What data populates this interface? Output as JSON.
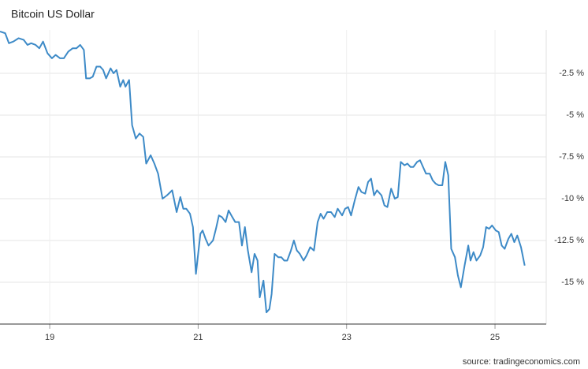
{
  "chart_data": {
    "type": "line",
    "title": "Bitcoin US Dollar",
    "source": "source: tradingeconomics.com",
    "xlim": [
      18.33,
      25.69
    ],
    "xticks": [
      19,
      21,
      23,
      25
    ],
    "ylim": [
      -17.5,
      0
    ],
    "yticks": [
      {
        "value": -2.5,
        "label": "-2.5 %"
      },
      {
        "value": -5,
        "label": "-5 %"
      },
      {
        "value": -7.5,
        "label": "-7.5 %"
      },
      {
        "value": -10,
        "label": "-10 %"
      },
      {
        "value": -12.5,
        "label": "-12.5 %"
      },
      {
        "value": -15,
        "label": "-15 %"
      }
    ],
    "grid": true,
    "y_axis_side": "right",
    "series": [
      {
        "name": "Bitcoin US Dollar",
        "color": "#3d8ac7",
        "x": [
          18.33,
          18.4,
          18.45,
          18.51,
          18.58,
          18.65,
          18.7,
          18.75,
          18.81,
          18.86,
          18.91,
          18.97,
          19.03,
          19.08,
          19.14,
          19.19,
          19.25,
          19.31,
          19.36,
          19.41,
          19.46,
          19.49,
          19.54,
          19.58,
          19.63,
          19.68,
          19.72,
          19.76,
          19.82,
          19.86,
          19.9,
          19.95,
          19.99,
          20.02,
          20.07,
          20.11,
          20.16,
          20.21,
          20.26,
          20.3,
          20.36,
          20.41,
          20.46,
          20.52,
          20.58,
          20.65,
          20.71,
          20.76,
          20.8,
          20.84,
          20.89,
          20.93,
          20.97,
          21.03,
          21.06,
          21.1,
          21.14,
          21.2,
          21.24,
          21.28,
          21.32,
          21.37,
          21.41,
          21.46,
          21.5,
          21.55,
          21.59,
          21.63,
          21.67,
          21.72,
          21.76,
          21.8,
          21.83,
          21.88,
          21.92,
          21.96,
          21.99,
          22.03,
          22.08,
          22.12,
          22.16,
          22.2,
          22.25,
          22.29,
          22.33,
          22.37,
          22.42,
          22.46,
          22.51,
          22.56,
          22.61,
          22.65,
          22.69,
          22.74,
          22.79,
          22.84,
          22.88,
          22.94,
          22.98,
          23.02,
          23.06,
          23.11,
          23.16,
          23.2,
          23.25,
          23.29,
          23.33,
          23.37,
          23.41,
          23.47,
          23.51,
          23.55,
          23.6,
          23.65,
          23.69,
          23.73,
          23.78,
          23.82,
          23.86,
          23.9,
          23.95,
          23.99,
          24.03,
          24.07,
          24.12,
          24.16,
          24.2,
          24.24,
          24.29,
          24.33,
          24.37,
          24.41,
          24.46,
          24.5,
          24.54,
          24.59,
          24.64,
          24.67,
          24.71,
          24.75,
          24.8,
          24.84,
          24.88,
          24.92,
          24.96,
          25.01,
          25.05,
          25.09,
          25.13,
          25.18,
          25.22,
          25.26,
          25.3,
          25.35,
          25.4
        ],
        "values": [
          0.0,
          -0.1,
          -0.7,
          -0.6,
          -0.4,
          -0.5,
          -0.8,
          -0.7,
          -0.8,
          -1.0,
          -0.6,
          -1.3,
          -1.6,
          -1.4,
          -1.6,
          -1.6,
          -1.2,
          -1.0,
          -1.0,
          -0.8,
          -1.1,
          -2.8,
          -2.8,
          -2.7,
          -2.1,
          -2.1,
          -2.3,
          -2.8,
          -2.2,
          -2.5,
          -2.3,
          -3.3,
          -2.9,
          -3.3,
          -2.9,
          -5.6,
          -6.4,
          -6.1,
          -6.3,
          -7.9,
          -7.4,
          -7.9,
          -8.5,
          -10.0,
          -9.8,
          -9.5,
          -10.8,
          -9.9,
          -10.6,
          -10.6,
          -10.9,
          -11.7,
          -14.5,
          -12.1,
          -11.9,
          -12.4,
          -12.8,
          -12.5,
          -11.8,
          -11.0,
          -11.1,
          -11.4,
          -10.7,
          -11.1,
          -11.4,
          -11.4,
          -12.8,
          -11.7,
          -13.1,
          -14.4,
          -13.3,
          -13.7,
          -15.9,
          -14.9,
          -16.8,
          -16.6,
          -15.7,
          -13.3,
          -13.5,
          -13.5,
          -13.7,
          -13.7,
          -13.1,
          -12.5,
          -13.1,
          -13.3,
          -13.7,
          -13.4,
          -12.9,
          -13.1,
          -11.4,
          -10.9,
          -11.2,
          -10.8,
          -10.8,
          -11.1,
          -10.6,
          -11.0,
          -10.6,
          -10.5,
          -11.0,
          -10.1,
          -9.3,
          -9.6,
          -9.7,
          -9.0,
          -8.8,
          -9.8,
          -9.5,
          -9.8,
          -10.4,
          -10.5,
          -9.4,
          -10.0,
          -9.9,
          -7.8,
          -8.0,
          -7.9,
          -8.1,
          -8.1,
          -7.8,
          -7.7,
          -8.1,
          -8.5,
          -8.5,
          -8.9,
          -9.1,
          -9.2,
          -9.2,
          -7.8,
          -8.6,
          -13.0,
          -13.5,
          -14.6,
          -15.3,
          -14.0,
          -12.8,
          -13.7,
          -13.2,
          -13.7,
          -13.4,
          -12.9,
          -11.7,
          -11.8,
          -11.6,
          -11.9,
          -12.0,
          -12.8,
          -13.0,
          -12.4,
          -12.1,
          -12.6,
          -12.2,
          -12.9,
          -14.0
        ]
      }
    ]
  }
}
